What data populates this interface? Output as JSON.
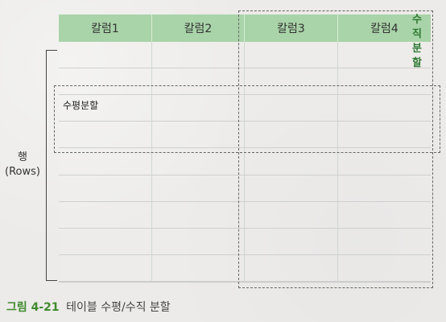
{
  "table": {
    "columns": [
      "칼럼1",
      "칼럼2",
      "칼럼3",
      "칼럼4"
    ]
  },
  "annotations": {
    "vertical_split": "수\n직\n분\n할",
    "horizontal_split": "수평분할",
    "rows_label": "행\n(Rows)"
  },
  "caption": {
    "prefix": "그림 4-21",
    "text": "테이블 수평/수직 분할"
  }
}
